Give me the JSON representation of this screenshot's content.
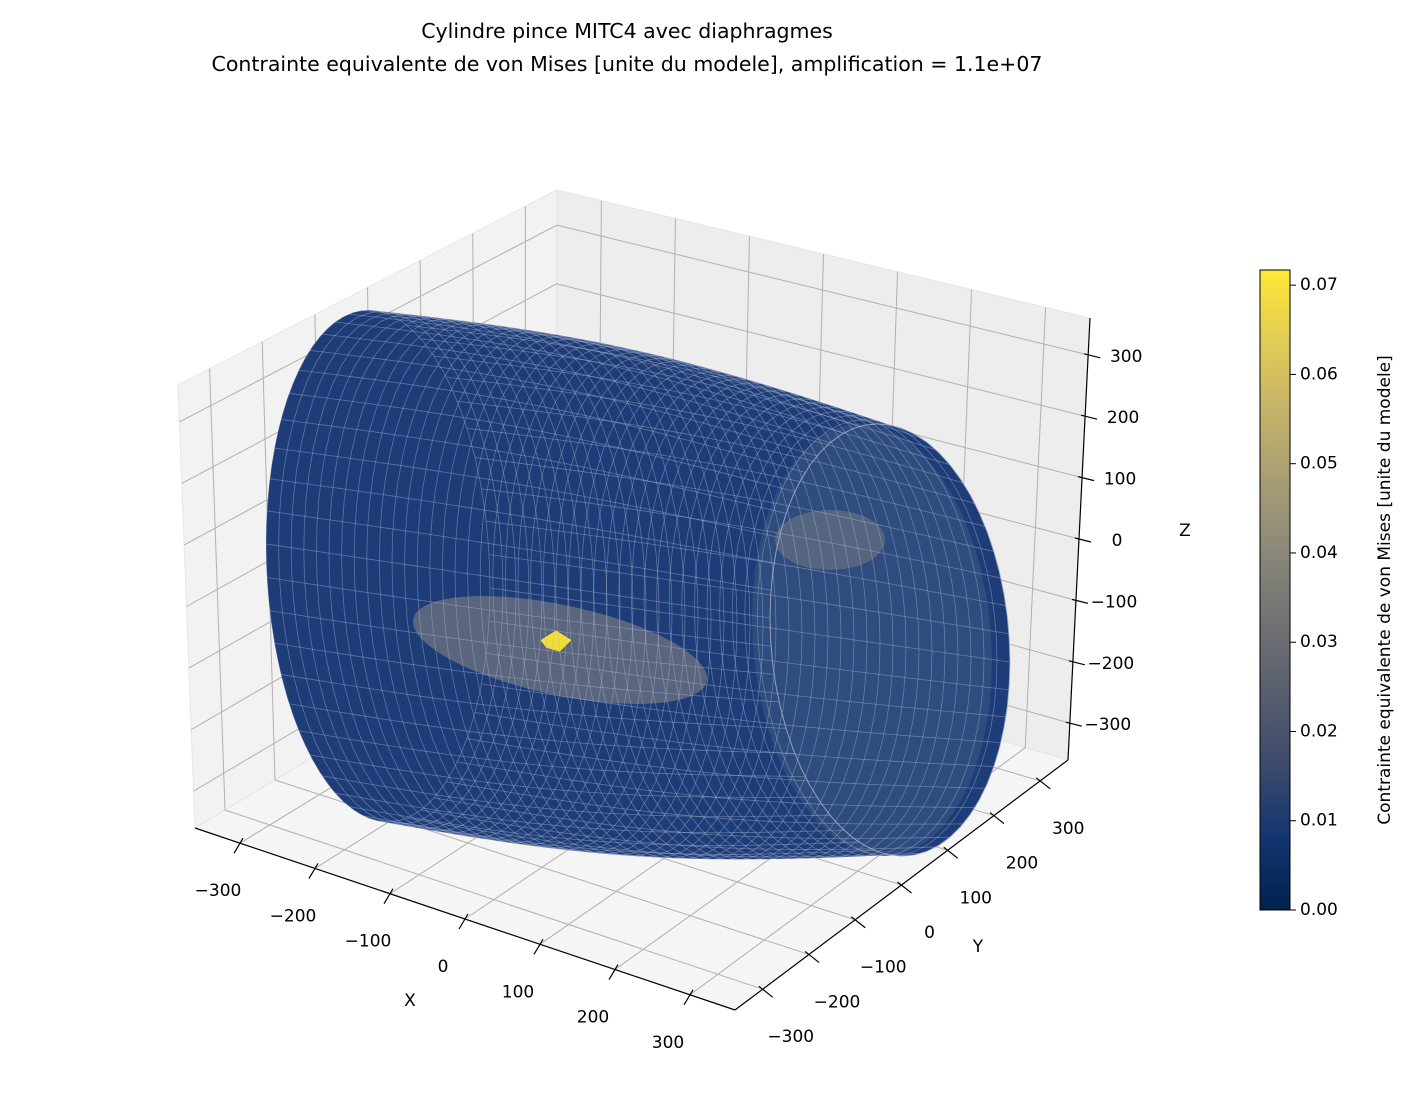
{
  "chart_data": {
    "type": "surface3d",
    "title": "Cylindre pince MITC4 avec diaphragmes",
    "subtitle": "Contrainte equivalente de von Mises [unite du modele], amplification = 1.1e+07",
    "xlabel": "X",
    "ylabel": "Y",
    "zlabel": "Z",
    "xlim": [
      -360,
      360
    ],
    "ylim": [
      -360,
      360
    ],
    "zlim": [
      -360,
      360
    ],
    "xticks": [
      {
        "value": -300,
        "label": "−300"
      },
      {
        "value": -200,
        "label": "−200"
      },
      {
        "value": -100,
        "label": "−100"
      },
      0,
      100,
      200,
      300
    ],
    "yticks": [
      {
        "value": -300,
        "label": "−300"
      },
      {
        "value": -200,
        "label": "−200"
      },
      {
        "value": -100,
        "label": "−100"
      },
      0,
      100,
      200,
      300
    ],
    "zticks": [
      {
        "value": -300,
        "label": "−300"
      },
      {
        "value": -200,
        "label": "−200"
      },
      {
        "value": -100,
        "label": "−100"
      },
      0,
      100,
      200,
      300
    ],
    "grid": true,
    "colorbar": {
      "label": "Contrainte equivalente de von Mises [unite du modele]",
      "colormap": "cividis",
      "clim": [
        0,
        0.0717
      ],
      "ticks": [
        {
          "value": 0,
          "label": "0.00"
        },
        {
          "value": 0.01,
          "label": "0.01"
        },
        {
          "value": 0.02,
          "label": "0.02"
        },
        {
          "value": 0.03,
          "label": "0.03"
        },
        {
          "value": 0.04,
          "label": "0.04"
        },
        {
          "value": 0.05,
          "label": "0.05"
        },
        {
          "value": 0.06,
          "label": "0.06"
        },
        {
          "value": 0.07,
          "label": "0.07"
        }
      ]
    }
  }
}
